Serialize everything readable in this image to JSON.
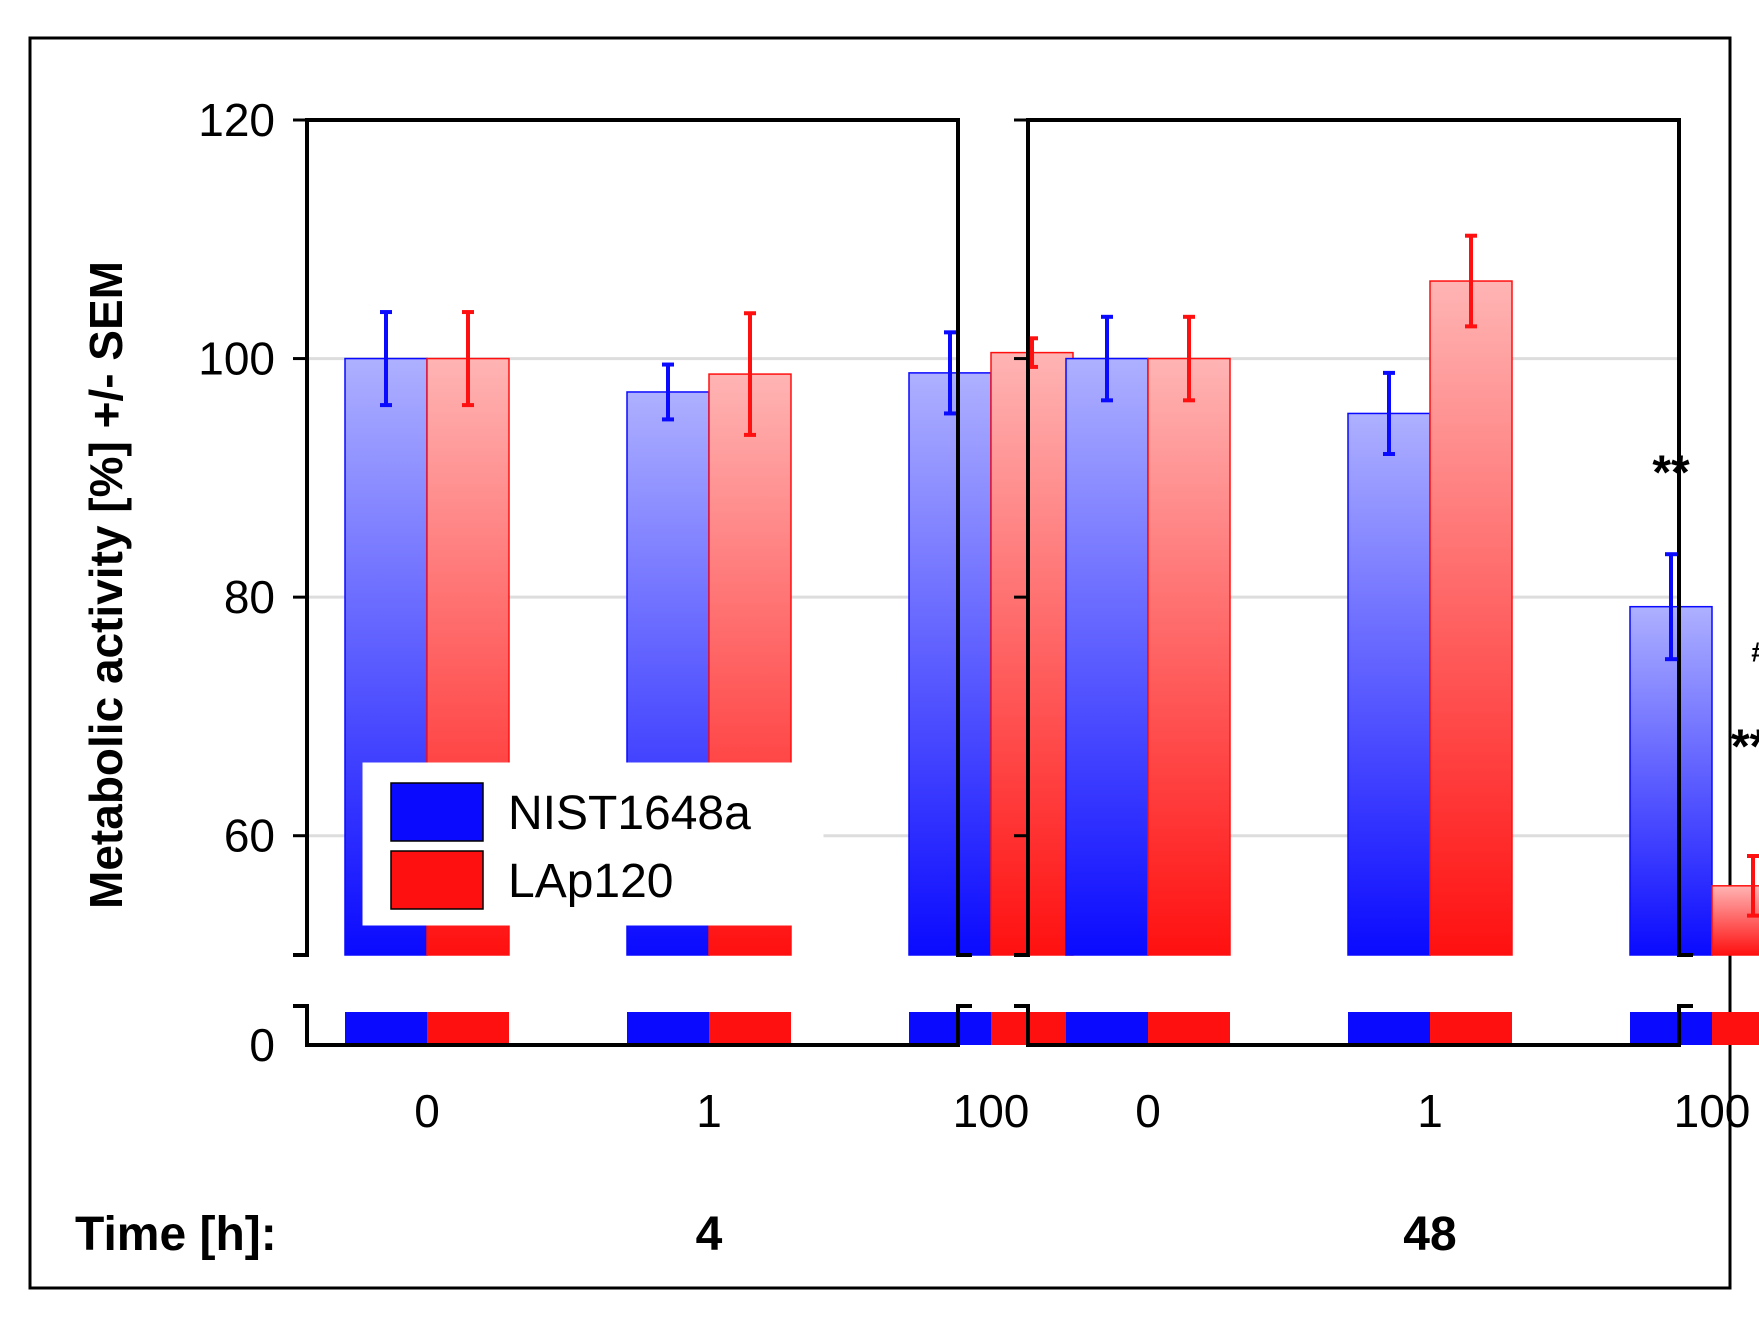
{
  "chart_data": {
    "type": "bar",
    "title": "",
    "ylabel": "Metabolic activity [%] +/- SEM",
    "ylim": [
      50,
      120
    ],
    "y_axis_break": {
      "lower_value": 0,
      "upper_start": 50
    },
    "yticks": [
      0,
      60,
      80,
      100,
      120
    ],
    "ytick_labels": [
      "0",
      "60",
      "80",
      "100",
      "120"
    ],
    "gridlines": [
      60,
      80,
      100
    ],
    "grid": true,
    "legend_placement": "lower-left of first panel",
    "series": [
      {
        "name": "NIST1648a",
        "color": "#0a0aff"
      },
      {
        "name": "LAp120",
        "color": "#ff1010"
      }
    ],
    "legend": {
      "items": [
        "NIST1648a",
        "LAp120"
      ]
    },
    "time_label": "Time [h]:",
    "panels": [
      {
        "time": "4",
        "categories": [
          "0",
          "1",
          "100"
        ],
        "values": {
          "NIST1648a": [
            100,
            97.2,
            98.8
          ],
          "LAp120": [
            100,
            98.7,
            100.5
          ]
        },
        "errors": {
          "NIST1648a": [
            3.9,
            2.3,
            3.4
          ],
          "LAp120": [
            3.9,
            5.1,
            1.2
          ]
        },
        "annotations": []
      },
      {
        "time": "48",
        "categories": [
          "0",
          "1",
          "100"
        ],
        "values": {
          "NIST1648a": [
            100,
            95.4,
            79.2
          ],
          "LAp120": [
            100,
            106.5,
            55.8
          ]
        },
        "errors": {
          "NIST1648a": [
            3.5,
            3.4,
            4.4
          ],
          "LAp120": [
            3.5,
            3.8,
            2.5
          ]
        },
        "annotations": [
          {
            "text": "**",
            "category": 2,
            "series": "NIST1648a"
          },
          {
            "text": "#",
            "category": 2,
            "series": "LAp120"
          },
          {
            "text": "***",
            "category": 2,
            "series": "LAp120"
          }
        ]
      }
    ]
  }
}
